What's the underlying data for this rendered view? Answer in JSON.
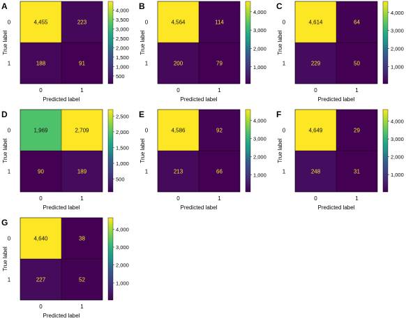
{
  "chart_data": [
    {
      "type": "heatmap",
      "panel": "A",
      "xlabel": "Predicted label",
      "ylabel": "True label",
      "x_categories": [
        "0",
        "1"
      ],
      "y_categories": [
        "0",
        "1"
      ],
      "values": [
        [
          4455,
          223
        ],
        [
          188,
          91
        ]
      ],
      "labels": [
        [
          "4,455",
          "223"
        ],
        [
          "188",
          "91"
        ]
      ],
      "colorbar": {
        "min": 91,
        "max": 4455,
        "ticks": [
          500,
          1000,
          1500,
          2000,
          2500,
          3000,
          3500,
          4000
        ],
        "tick_labels": [
          "500",
          "1,000",
          "1,500",
          "2,000",
          "2,500",
          "3,000",
          "3,500",
          "4,000"
        ]
      }
    },
    {
      "type": "heatmap",
      "panel": "B",
      "xlabel": "Predicted label",
      "ylabel": "True label",
      "x_categories": [
        "0",
        "1"
      ],
      "y_categories": [
        "0",
        "1"
      ],
      "values": [
        [
          4564,
          114
        ],
        [
          200,
          79
        ]
      ],
      "labels": [
        [
          "4,564",
          "114"
        ],
        [
          "200",
          "79"
        ]
      ],
      "colorbar": {
        "min": 79,
        "max": 4564,
        "ticks": [
          1000,
          2000,
          3000,
          4000
        ],
        "tick_labels": [
          "1,000",
          "2,000",
          "3,000",
          "4,000"
        ]
      }
    },
    {
      "type": "heatmap",
      "panel": "C",
      "xlabel": "Predicted label",
      "ylabel": "True label",
      "x_categories": [
        "0",
        "1"
      ],
      "y_categories": [
        "0",
        "1"
      ],
      "values": [
        [
          4614,
          64
        ],
        [
          229,
          50
        ]
      ],
      "labels": [
        [
          "4,614",
          "64"
        ],
        [
          "229",
          "50"
        ]
      ],
      "colorbar": {
        "min": 50,
        "max": 4614,
        "ticks": [
          1000,
          2000,
          3000,
          4000
        ],
        "tick_labels": [
          "1,000",
          "2,000",
          "3,000",
          "4,000"
        ]
      }
    },
    {
      "type": "heatmap",
      "panel": "D",
      "xlabel": "Predicted label",
      "ylabel": "True label",
      "x_categories": [
        "0",
        "1"
      ],
      "y_categories": [
        "0",
        "1"
      ],
      "values": [
        [
          1969,
          2709
        ],
        [
          90,
          189
        ]
      ],
      "labels": [
        [
          "1,969",
          "2,709"
        ],
        [
          "90",
          "189"
        ]
      ],
      "colorbar": {
        "min": 90,
        "max": 2709,
        "ticks": [
          500,
          1000,
          1500,
          2000,
          2500
        ],
        "tick_labels": [
          "500",
          "1,000",
          "1,500",
          "2,000",
          "2,500"
        ]
      }
    },
    {
      "type": "heatmap",
      "panel": "E",
      "xlabel": "Predicted label",
      "ylabel": "True label",
      "x_categories": [
        "0",
        "1"
      ],
      "y_categories": [
        "0",
        "1"
      ],
      "values": [
        [
          4586,
          92
        ],
        [
          213,
          66
        ]
      ],
      "labels": [
        [
          "4,586",
          "92"
        ],
        [
          "213",
          "66"
        ]
      ],
      "colorbar": {
        "min": 66,
        "max": 4586,
        "ticks": [
          1000,
          2000,
          3000,
          4000
        ],
        "tick_labels": [
          "1,000",
          "2,000",
          "3,000",
          "4,000"
        ]
      }
    },
    {
      "type": "heatmap",
      "panel": "F",
      "xlabel": "Predicted label",
      "ylabel": "True label",
      "x_categories": [
        "0",
        "1"
      ],
      "y_categories": [
        "0",
        "1"
      ],
      "values": [
        [
          4649,
          29
        ],
        [
          248,
          31
        ]
      ],
      "labels": [
        [
          "4,649",
          "29"
        ],
        [
          "248",
          "31"
        ]
      ],
      "colorbar": {
        "min": 29,
        "max": 4649,
        "ticks": [
          1000,
          2000,
          3000,
          4000
        ],
        "tick_labels": [
          "1,000",
          "2,000",
          "3,000",
          "4,000"
        ]
      }
    },
    {
      "type": "heatmap",
      "panel": "G",
      "xlabel": "Predicted label",
      "ylabel": "True label",
      "x_categories": [
        "0",
        "1"
      ],
      "y_categories": [
        "0",
        "1"
      ],
      "values": [
        [
          4640,
          38
        ],
        [
          227,
          52
        ]
      ],
      "labels": [
        [
          "4,640",
          "38"
        ],
        [
          "227",
          "52"
        ]
      ],
      "colorbar": {
        "min": 38,
        "max": 4640,
        "ticks": [
          1000,
          2000,
          3000,
          4000
        ],
        "tick_labels": [
          "1,000",
          "2,000",
          "3,000",
          "4,000"
        ]
      }
    }
  ],
  "colormap": "viridis",
  "text_colors": {
    "on_dark": "#f3e22f",
    "on_light": "#111111"
  }
}
